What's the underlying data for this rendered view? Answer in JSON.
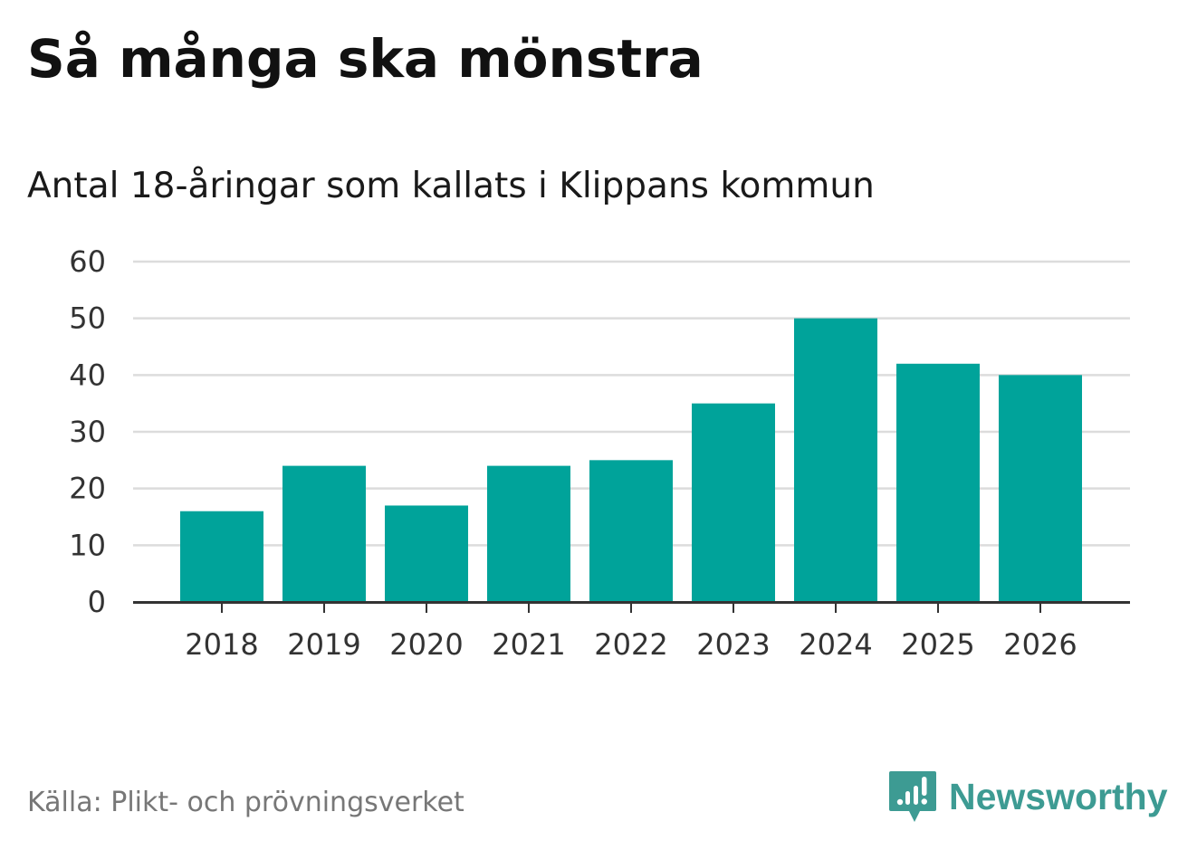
{
  "title": "Så många ska mönstra",
  "subtitle": "Antal 18-åringar som kallats i Klippans kommun",
  "source": "Källa: Plikt- och prövningsverket",
  "brand": {
    "name": "Newsworthy",
    "icon": "newsworthy-logo-icon",
    "color": "#3d9b93"
  },
  "colors": {
    "bar": "#00a39a",
    "grid": "#dcdcdc",
    "axis": "#333333",
    "tick_text": "#333333"
  },
  "chart_data": {
    "type": "bar",
    "title": "Så många ska mönstra",
    "subtitle": "Antal 18-åringar som kallats i Klippans kommun",
    "xlabel": "",
    "ylabel": "",
    "categories": [
      "2018",
      "2019",
      "2020",
      "2021",
      "2022",
      "2023",
      "2024",
      "2025",
      "2026"
    ],
    "values": [
      16,
      24,
      17,
      24,
      25,
      35,
      50,
      42,
      40
    ],
    "ylim": [
      0,
      60
    ],
    "yticks": [
      0,
      10,
      20,
      30,
      40,
      50,
      60
    ],
    "grid": true,
    "legend": "none"
  }
}
